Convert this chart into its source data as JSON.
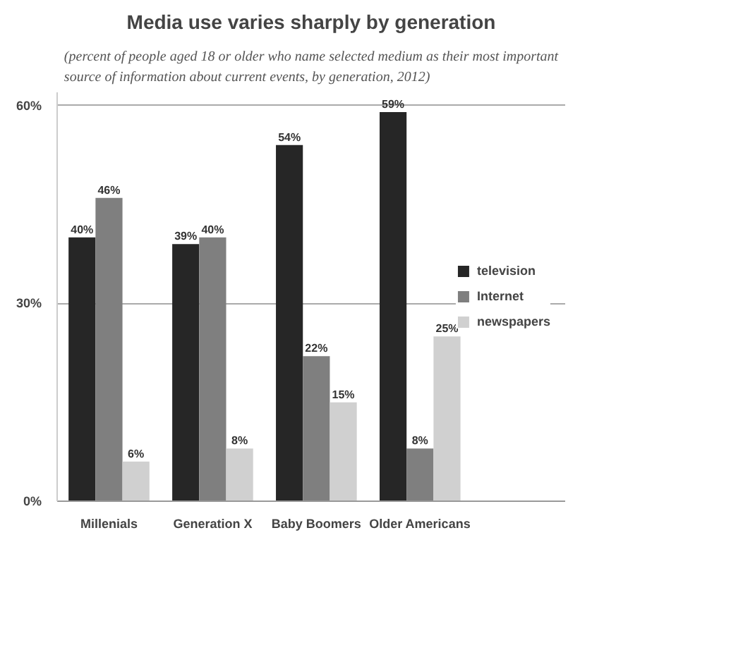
{
  "chart_data": {
    "type": "bar",
    "title": "Media use varies sharply by generation",
    "subtitle": "(percent of people aged 18 or older who name selected medium as their most important\nsource of information about current events, by generation, 2012)",
    "categories": [
      "Millenials",
      "Generation X",
      "Baby Boomers",
      "Older Americans"
    ],
    "series": [
      {
        "name": "television",
        "color": "#262626",
        "values": [
          40,
          39,
          54,
          59
        ],
        "value_labels": [
          "40%",
          "39%",
          "54%",
          "59%"
        ]
      },
      {
        "name": "Internet",
        "color": "#7f7f7f",
        "values": [
          46,
          40,
          22,
          8
        ],
        "value_labels": [
          "46%",
          "40%",
          "22%",
          "8%"
        ]
      },
      {
        "name": "newspapers",
        "color": "#d0d0d0",
        "values": [
          6,
          8,
          15,
          25
        ],
        "value_labels": [
          "6%",
          "8%",
          "15%",
          "25%"
        ]
      }
    ],
    "ylim": [
      0,
      62
    ],
    "yticks": [
      {
        "value": 0,
        "label": "0%"
      },
      {
        "value": 30,
        "label": "30%"
      },
      {
        "value": 60,
        "label": "60%"
      }
    ],
    "grid": "y",
    "legend": "right"
  }
}
